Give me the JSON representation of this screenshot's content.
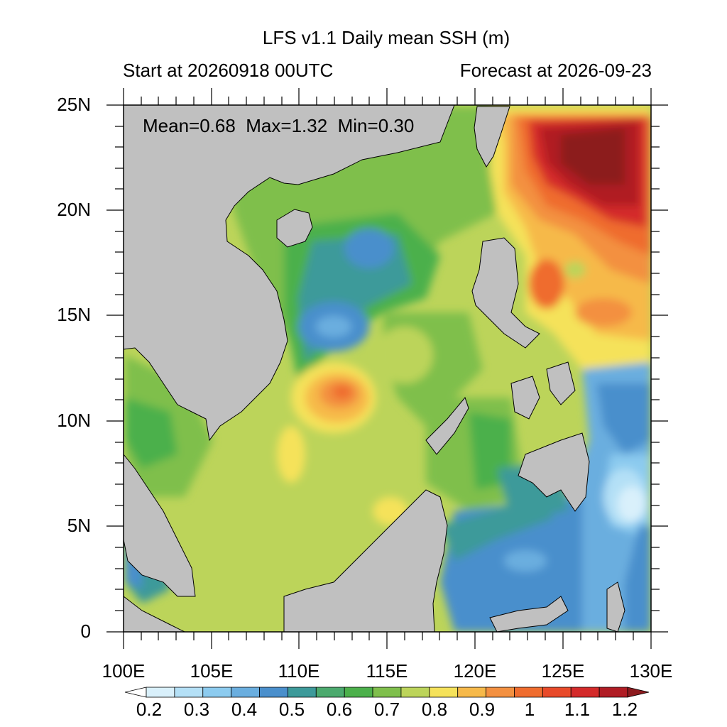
{
  "map": {
    "title": "LFS v1.1 Daily mean SSH (m)",
    "start_text": "Start at 20260918 00UTC",
    "forecast_text": "Forecast at 2026-09-23",
    "stats_text": "Mean=0.68  Max=1.32  Min=0.30",
    "lat_labels": [
      "25N",
      "20N",
      "15N",
      "10N",
      "5N",
      "0"
    ],
    "lon_labels": [
      "100E",
      "105E",
      "110E",
      "115E",
      "120E",
      "125E",
      "130E"
    ],
    "colorbar": {
      "labels": [
        "0.2",
        "0.3",
        "0.4",
        "0.5",
        "0.6",
        "0.7",
        "0.8",
        "0.9",
        "1",
        "1.1",
        "1.2"
      ],
      "colors": [
        "#ffffff",
        "#d9f0fb",
        "#b4e0f6",
        "#8ccbef",
        "#6aaedf",
        "#4a8fcc",
        "#3d9a9a",
        "#4caa6e",
        "#4cb04b",
        "#7fbf4c",
        "#bcd45a",
        "#f5e25a",
        "#f6b94a",
        "#f39040",
        "#ef6c2e",
        "#e84a2a",
        "#d42a2a",
        "#b01c24",
        "#8c1a1e"
      ]
    },
    "land_color": "#c0c0c0"
  }
}
